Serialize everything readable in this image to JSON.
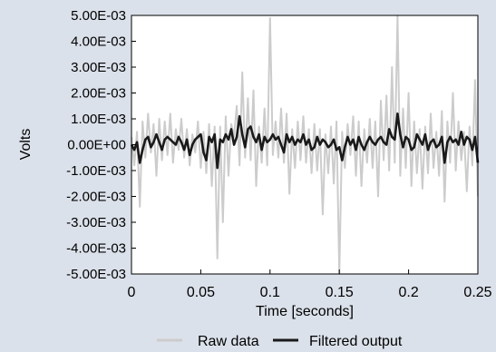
{
  "chart_data": {
    "type": "line",
    "title": "",
    "xlabel": "Time [seconds]",
    "ylabel": "Volts",
    "xlim": [
      0,
      0.25
    ],
    "ylim": [
      -0.005,
      0.005
    ],
    "x_ticks": [
      0,
      0.05,
      0.1,
      0.15,
      0.2,
      0.25
    ],
    "x_tick_labels": [
      "0",
      "0.05",
      "0.1",
      "0.15",
      "0.2",
      "0.25"
    ],
    "y_ticks": [
      0.005,
      0.004,
      0.003,
      0.002,
      0.001,
      0,
      -0.001,
      -0.002,
      -0.003,
      -0.004,
      -0.005
    ],
    "y_tick_labels": [
      "5.00E-03",
      "4.00E-03",
      "3.00E-03",
      "2.00E-03",
      "1.00E-03",
      "0.00E+00",
      "-1.00E-03",
      "-2.00E-03",
      "-3.00E-03",
      "-4.00E-03",
      "-5.00E-03"
    ],
    "grid": false,
    "legend_position": "bottom",
    "series": [
      {
        "name": "Raw data",
        "color": "#cccccc",
        "x": [
          0,
          0.002,
          0.004,
          0.006,
          0.008,
          0.01,
          0.012,
          0.014,
          0.016,
          0.018,
          0.02,
          0.022,
          0.024,
          0.026,
          0.028,
          0.03,
          0.032,
          0.034,
          0.036,
          0.038,
          0.04,
          0.042,
          0.044,
          0.046,
          0.048,
          0.05,
          0.052,
          0.054,
          0.056,
          0.058,
          0.06,
          0.062,
          0.064,
          0.066,
          0.068,
          0.07,
          0.072,
          0.074,
          0.076,
          0.078,
          0.08,
          0.082,
          0.084,
          0.086,
          0.088,
          0.09,
          0.092,
          0.094,
          0.096,
          0.098,
          0.1,
          0.102,
          0.104,
          0.106,
          0.108,
          0.11,
          0.112,
          0.114,
          0.116,
          0.118,
          0.12,
          0.122,
          0.124,
          0.126,
          0.128,
          0.13,
          0.132,
          0.134,
          0.136,
          0.138,
          0.14,
          0.142,
          0.144,
          0.146,
          0.148,
          0.15,
          0.152,
          0.154,
          0.156,
          0.158,
          0.16,
          0.162,
          0.164,
          0.166,
          0.168,
          0.17,
          0.172,
          0.174,
          0.176,
          0.178,
          0.18,
          0.182,
          0.184,
          0.186,
          0.188,
          0.19,
          0.192,
          0.194,
          0.196,
          0.198,
          0.2,
          0.202,
          0.204,
          0.206,
          0.208,
          0.21,
          0.212,
          0.214,
          0.216,
          0.218,
          0.22,
          0.222,
          0.224,
          0.226,
          0.228,
          0.23,
          0.232,
          0.234,
          0.236,
          0.238,
          0.24,
          0.242,
          0.244,
          0.246,
          0.248,
          0.25
        ],
        "y": [
          0.0003,
          -0.0008,
          0.0005,
          -0.0024,
          0.0009,
          -0.0005,
          0.0012,
          -0.0003,
          0.0008,
          -0.0012,
          0.001,
          -0.0006,
          0.0009,
          -0.0004,
          0.0012,
          -0.0007,
          0.0006,
          -0.0002,
          0.001,
          -0.0005,
          0.0006,
          -0.0008,
          0.0004,
          -0.0003,
          0.0009,
          -0.0009,
          0.0005,
          -0.0011,
          0.0008,
          -0.0016,
          0.0007,
          -0.0044,
          0.0007,
          -0.003,
          0.0011,
          -0.0012,
          0.0008,
          0.0003,
          0.0015,
          -0.0008,
          0.0028,
          -0.0005,
          0.0018,
          -0.0006,
          0.0021,
          -0.0016,
          0.0007,
          -0.0007,
          0.0014,
          -0.0008,
          0.0049,
          -0.0004,
          0.0009,
          -0.0005,
          0.0014,
          -0.0007,
          0.0012,
          -0.0019,
          0.0006,
          -0.0009,
          0.0009,
          -0.0006,
          0.0011,
          -0.0007,
          0.0006,
          -0.0011,
          0.0008,
          -0.001,
          0.0006,
          -0.0027,
          0.0004,
          -0.0011,
          0.0007,
          -0.0015,
          0.0009,
          -0.005,
          0.0005,
          -0.0009,
          0.0008,
          -0.0004,
          0.0011,
          -0.0012,
          0.0009,
          -0.0016,
          0.0006,
          -0.0007,
          0.001,
          -0.0009,
          0.0009,
          -0.002,
          0.0017,
          -0.0006,
          0.0019,
          -0.001,
          0.003,
          -0.0007,
          0.005,
          -0.0012,
          0.0014,
          -0.0009,
          0.002,
          -0.0016,
          0.0009,
          -0.0011,
          0.0006,
          -0.0017,
          0.0007,
          -0.0011,
          0.0012,
          -0.0009,
          0.0005,
          -0.0012,
          0.0013,
          -0.0022,
          0.0009,
          -0.0007,
          0.002,
          -0.001,
          0.0009,
          -0.0006,
          0.0005,
          -0.0018,
          0.0007,
          -0.0008,
          0.0025,
          -0.002
        ]
      },
      {
        "name": "Filtered output",
        "color": "#1a1a1a",
        "x": [
          0,
          0.002,
          0.004,
          0.006,
          0.008,
          0.01,
          0.012,
          0.014,
          0.016,
          0.018,
          0.02,
          0.022,
          0.024,
          0.026,
          0.028,
          0.03,
          0.032,
          0.034,
          0.036,
          0.038,
          0.04,
          0.042,
          0.044,
          0.046,
          0.048,
          0.05,
          0.052,
          0.054,
          0.056,
          0.058,
          0.06,
          0.062,
          0.064,
          0.066,
          0.068,
          0.07,
          0.072,
          0.074,
          0.076,
          0.078,
          0.08,
          0.082,
          0.084,
          0.086,
          0.088,
          0.09,
          0.092,
          0.094,
          0.096,
          0.098,
          0.1,
          0.102,
          0.104,
          0.106,
          0.108,
          0.11,
          0.112,
          0.114,
          0.116,
          0.118,
          0.12,
          0.122,
          0.124,
          0.126,
          0.128,
          0.13,
          0.132,
          0.134,
          0.136,
          0.138,
          0.14,
          0.142,
          0.144,
          0.146,
          0.148,
          0.15,
          0.152,
          0.154,
          0.156,
          0.158,
          0.16,
          0.162,
          0.164,
          0.166,
          0.168,
          0.17,
          0.172,
          0.174,
          0.176,
          0.178,
          0.18,
          0.182,
          0.184,
          0.186,
          0.188,
          0.19,
          0.192,
          0.194,
          0.196,
          0.198,
          0.2,
          0.202,
          0.204,
          0.206,
          0.208,
          0.21,
          0.212,
          0.214,
          0.216,
          0.218,
          0.22,
          0.222,
          0.224,
          0.226,
          0.228,
          0.23,
          0.232,
          0.234,
          0.236,
          0.238,
          0.24,
          0.242,
          0.244,
          0.246,
          0.248,
          0.25
        ],
        "y": [
          0.0,
          -0.0002,
          0.0001,
          -0.0007,
          -0.0002,
          0.0002,
          0.0003,
          -0.0001,
          0.0001,
          0.0004,
          0.0001,
          -0.0002,
          0.0002,
          0.0003,
          0.0002,
          0.0001,
          0.0,
          0.0003,
          0.0001,
          -0.0002,
          0.0002,
          -0.0004,
          0.0,
          0.0002,
          0.0003,
          0.0004,
          -0.0003,
          -0.0006,
          0.0003,
          0.0001,
          0.0004,
          -0.0009,
          0.0002,
          0.0001,
          0.0004,
          0.0002,
          0.0006,
          0.0,
          0.0003,
          0.0011,
          0.0004,
          -0.0001,
          0.0006,
          0.0007,
          0.0003,
          0.0001,
          0.0004,
          -0.0002,
          0.0003,
          0.0001,
          0.0002,
          0.0004,
          0.0002,
          0.0003,
          0.0,
          -0.0003,
          0.0004,
          0.0001,
          0.0003,
          0.0,
          0.0002,
          0.0001,
          0.0004,
          0.0,
          0.0002,
          -0.0002,
          -0.0001,
          0.0003,
          0.0,
          0.0002,
          0.0001,
          -0.0001,
          0.0,
          0.0002,
          -0.0002,
          -0.0001,
          -0.0006,
          -0.0001,
          0.0003,
          0.0,
          0.0002,
          -0.0002,
          0.0003,
          0.0,
          -0.0002,
          0.0001,
          0.0003,
          0.0001,
          0.0,
          0.0002,
          0.0003,
          0.0001,
          0.0,
          0.0006,
          0.0003,
          0.0002,
          0.0012,
          0.0004,
          -0.0001,
          0.0003,
          0.0002,
          -0.0002,
          -0.0001,
          0.0004,
          0.0002,
          0.0,
          0.0004,
          -0.0002,
          0.0001,
          0.0002,
          -0.0001,
          0.0,
          0.0003,
          -0.0007,
          0.0001,
          0.0003,
          0.0001,
          0.0002,
          0.0,
          0.0005,
          0.0,
          0.0003,
          0.0002,
          -0.0002,
          0.0003,
          -0.0007
        ]
      }
    ]
  }
}
